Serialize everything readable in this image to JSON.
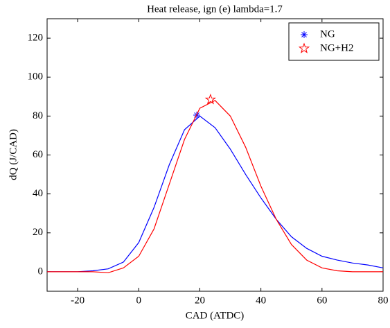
{
  "chart_data": {
    "type": "line",
    "title": "Heat release, ign (e) lambda=1.7",
    "x_label": "CAD (ATDC)",
    "y_label": "dQ (J/CAD)",
    "x": [
      -30,
      -25,
      -20,
      -15,
      -10,
      -5,
      0,
      5,
      10,
      15,
      20,
      25,
      30,
      35,
      40,
      45,
      50,
      55,
      60,
      65,
      70,
      75,
      80
    ],
    "series": [
      {
        "name": "NG",
        "color": "#0000ff",
        "marker": "asterisk",
        "peak_x": 19,
        "peak_y": 80.5,
        "values": [
          0,
          0,
          0,
          0.5,
          1.5,
          5,
          15,
          33,
          55,
          73,
          80,
          74,
          63,
          50,
          38,
          27,
          18,
          12,
          8,
          6,
          4.5,
          3.5,
          2
        ]
      },
      {
        "name": "NG+H2",
        "color": "#ff0000",
        "marker": "pentagram",
        "peak_x": 23.5,
        "peak_y": 88.5,
        "values": [
          0,
          0,
          0,
          0,
          -0.5,
          2,
          8,
          22,
          45,
          68,
          84,
          88,
          80,
          64,
          44,
          27,
          14,
          6,
          2,
          0.5,
          0,
          0,
          0
        ]
      }
    ],
    "xlim": [
      -30,
      80
    ],
    "ylim": [
      -10,
      130
    ],
    "xticks": [
      -20,
      0,
      20,
      40,
      60,
      80
    ],
    "yticks": [
      0,
      20,
      40,
      60,
      80,
      100,
      120
    ],
    "legend": "top-right"
  }
}
